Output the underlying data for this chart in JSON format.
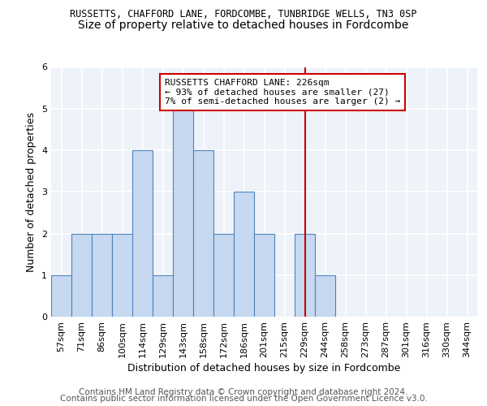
{
  "title1": "RUSSETTS, CHAFFORD LANE, FORDCOMBE, TUNBRIDGE WELLS, TN3 0SP",
  "title2": "Size of property relative to detached houses in Fordcombe",
  "xlabel": "Distribution of detached houses by size in Fordcombe",
  "ylabel": "Number of detached properties",
  "bin_labels": [
    "57sqm",
    "71sqm",
    "86sqm",
    "100sqm",
    "114sqm",
    "129sqm",
    "143sqm",
    "158sqm",
    "172sqm",
    "186sqm",
    "201sqm",
    "215sqm",
    "229sqm",
    "244sqm",
    "258sqm",
    "273sqm",
    "287sqm",
    "301sqm",
    "316sqm",
    "330sqm",
    "344sqm"
  ],
  "bar_heights": [
    1,
    2,
    2,
    2,
    4,
    1,
    5,
    4,
    2,
    3,
    2,
    0,
    2,
    1,
    0,
    0,
    0,
    0,
    0,
    0,
    0
  ],
  "bar_color": "#c6d9f0",
  "bar_edge_color": "#4f81bd",
  "red_line_index": 12,
  "red_line_color": "#cc0000",
  "annotation_line1": "RUSSETTS CHAFFORD LANE: 226sqm",
  "annotation_line2": "← 93% of detached houses are smaller (27)",
  "annotation_line3": "7% of semi-detached houses are larger (2) →",
  "annotation_box_color": "#cc0000",
  "annotation_box_fill": "#ffffff",
  "ylim": [
    0,
    6
  ],
  "yticks": [
    0,
    1,
    2,
    3,
    4,
    5,
    6
  ],
  "footer_line1": "Contains HM Land Registry data © Crown copyright and database right 2024.",
  "footer_line2": "Contains public sector information licensed under the Open Government Licence v3.0.",
  "background_color": "#eef2f9",
  "grid_color": "#ffffff",
  "title1_fontsize": 8.5,
  "title2_fontsize": 10,
  "axis_label_fontsize": 9,
  "tick_fontsize": 8,
  "annotation_fontsize": 8,
  "footer_fontsize": 7.5
}
